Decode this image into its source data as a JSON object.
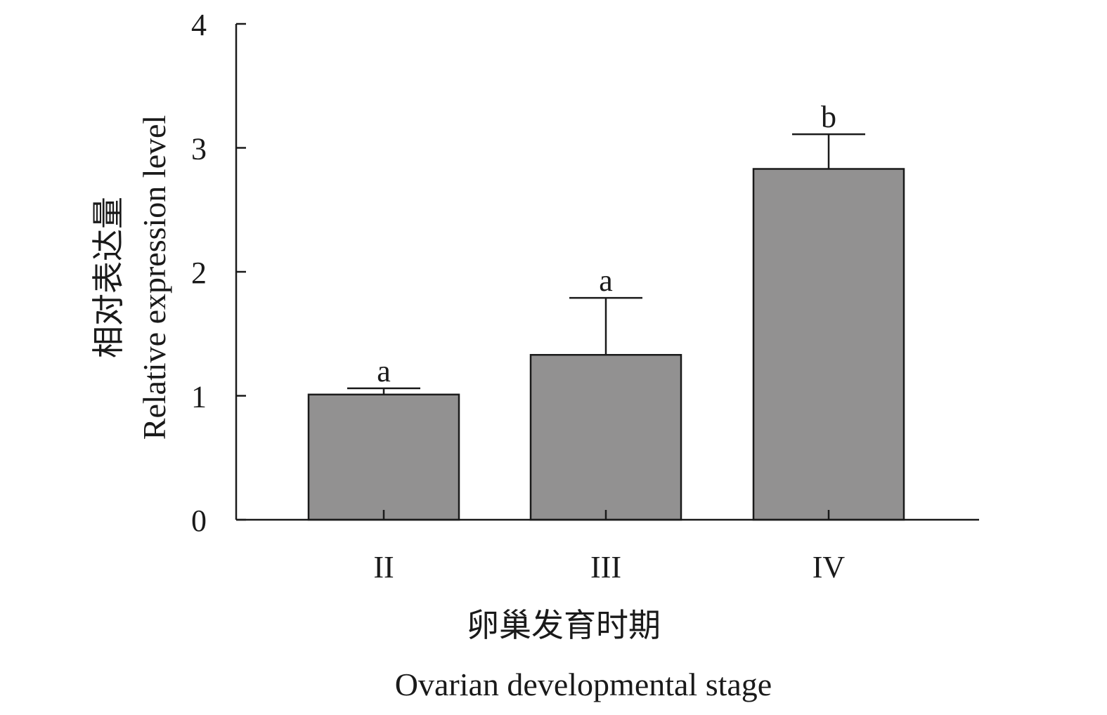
{
  "chart_data": {
    "type": "bar",
    "categories": [
      "II",
      "III",
      "IV"
    ],
    "values": [
      1.01,
      1.33,
      2.83
    ],
    "error_upper": [
      1.06,
      1.79,
      3.11
    ],
    "significance": [
      "a",
      "a",
      "b"
    ],
    "ylim": [
      0,
      4
    ],
    "yticks": [
      "0",
      "1",
      "2",
      "3",
      "4"
    ],
    "ylabel_cn": "相对表达量",
    "ylabel_en": "Relative expression level",
    "xlabel_cn": "卵巢发育时期",
    "xlabel_en": "Ovarian developmental stage",
    "bar_color": "#929191",
    "grid": false
  }
}
